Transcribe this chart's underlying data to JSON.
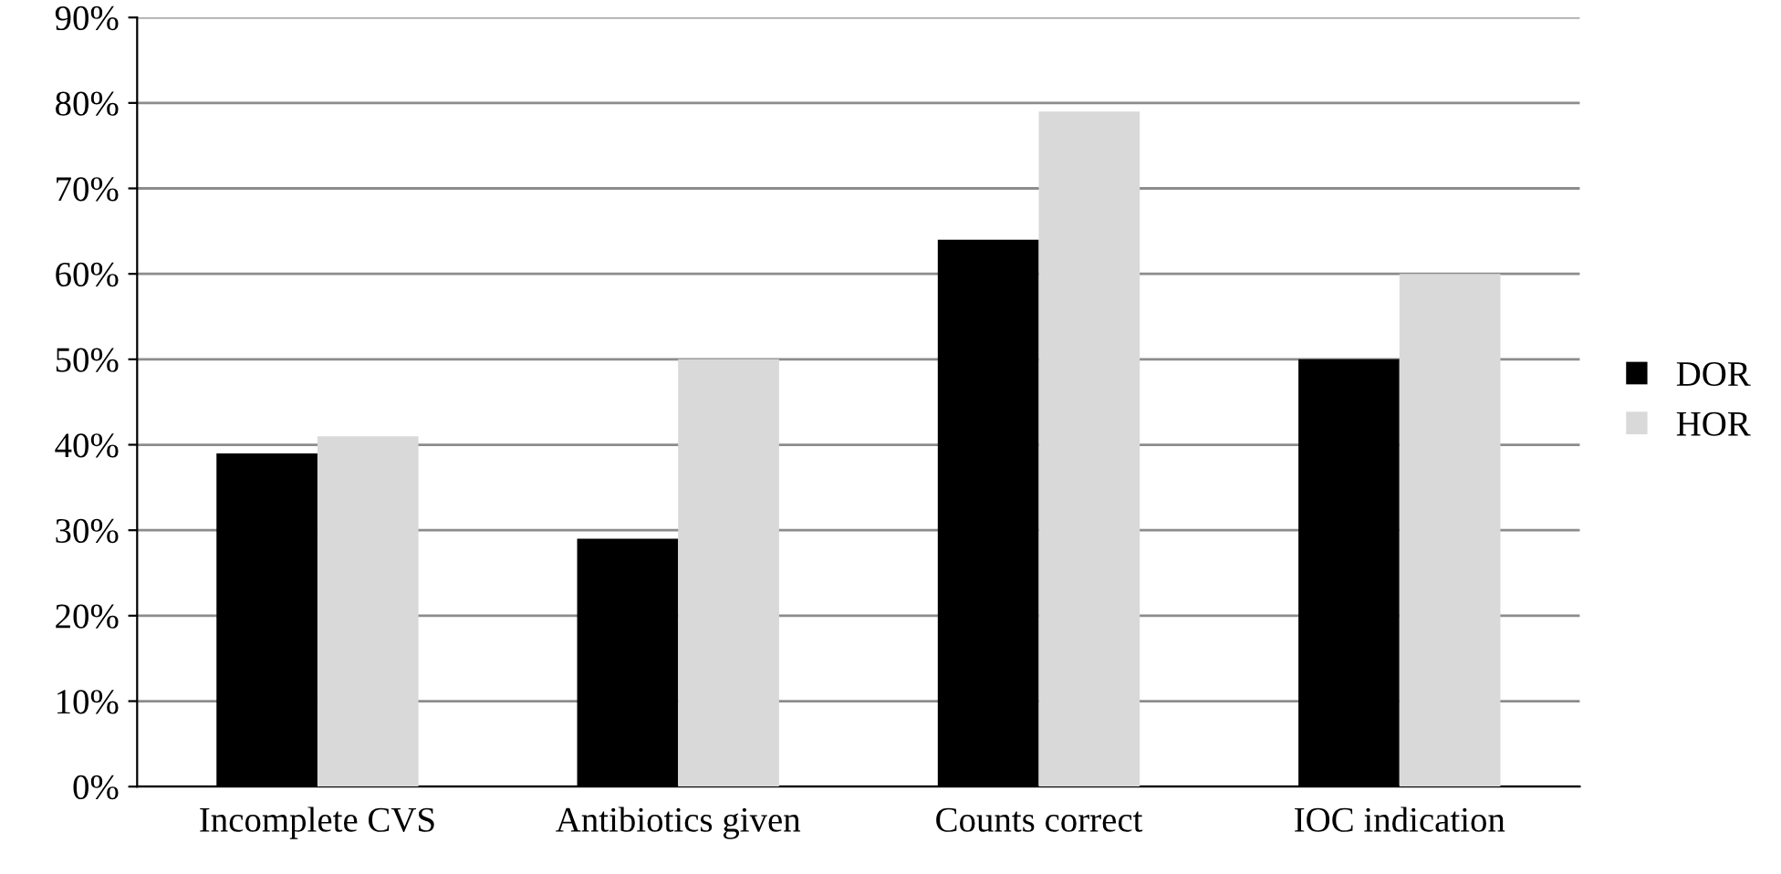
{
  "chart_data": {
    "type": "bar",
    "categories": [
      "Incomplete CVS",
      "Antibiotics given",
      "Counts correct",
      "IOC indication"
    ],
    "series": [
      {
        "name": "DOR",
        "color": "#000000",
        "values": [
          39,
          29,
          64,
          50
        ]
      },
      {
        "name": "HOR",
        "color": "#d9d9d9",
        "values": [
          41,
          50,
          79,
          60
        ]
      }
    ],
    "ylim": [
      0,
      90
    ],
    "yticks": [
      {
        "value": 0,
        "label": "0%"
      },
      {
        "value": 10,
        "label": "10%"
      },
      {
        "value": 20,
        "label": "20%"
      },
      {
        "value": 30,
        "label": "30%"
      },
      {
        "value": 40,
        "label": "40%"
      },
      {
        "value": 50,
        "label": "50%"
      },
      {
        "value": 60,
        "label": "60%"
      },
      {
        "value": 70,
        "label": "70%"
      },
      {
        "value": 80,
        "label": "80%"
      },
      {
        "value": 90,
        "label": "90%"
      }
    ],
    "grid": "y",
    "legend": "right"
  }
}
